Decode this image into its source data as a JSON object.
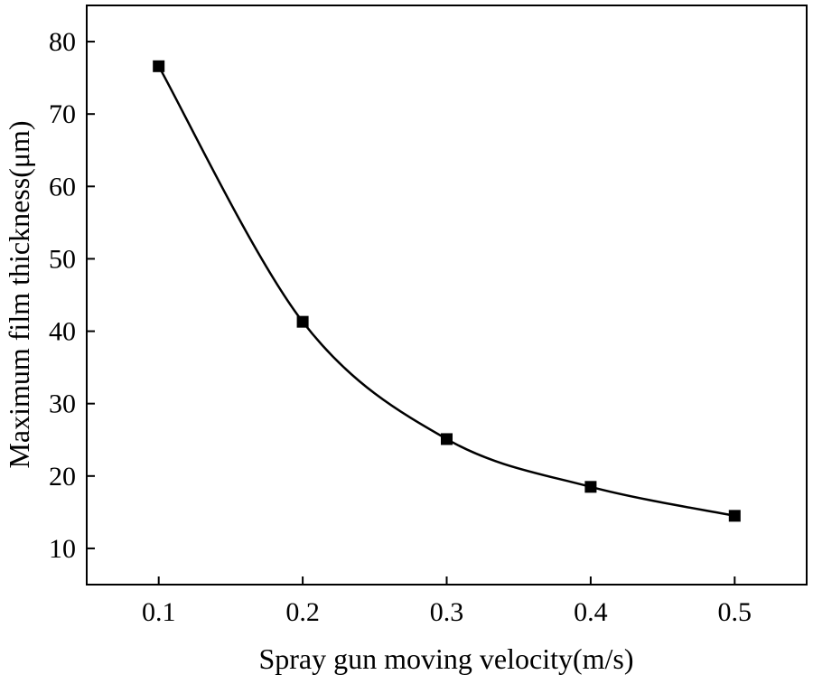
{
  "chart_data": {
    "type": "line",
    "title": "",
    "xlabel": "Spray gun moving velocity(m/s)",
    "ylabel": "Maximum film thickness(μm)",
    "xlim": [
      0.05,
      0.55
    ],
    "ylim": [
      5,
      85
    ],
    "xticks": [
      0.1,
      0.2,
      0.3,
      0.4,
      0.5
    ],
    "xtick_labels": [
      "0.1",
      "0.2",
      "0.3",
      "0.4",
      "0.5"
    ],
    "yticks": [
      10,
      20,
      30,
      40,
      50,
      60,
      70,
      80
    ],
    "ytick_labels": [
      "10",
      "20",
      "30",
      "40",
      "50",
      "60",
      "70",
      "80"
    ],
    "grid": false,
    "series": [
      {
        "name": "Maximum film thickness",
        "x": [
          0.1,
          0.2,
          0.3,
          0.4,
          0.5
        ],
        "values": [
          76.6,
          41.3,
          25.1,
          18.5,
          14.5
        ],
        "marker": "square",
        "line": "smooth",
        "color": "#000000"
      }
    ]
  }
}
